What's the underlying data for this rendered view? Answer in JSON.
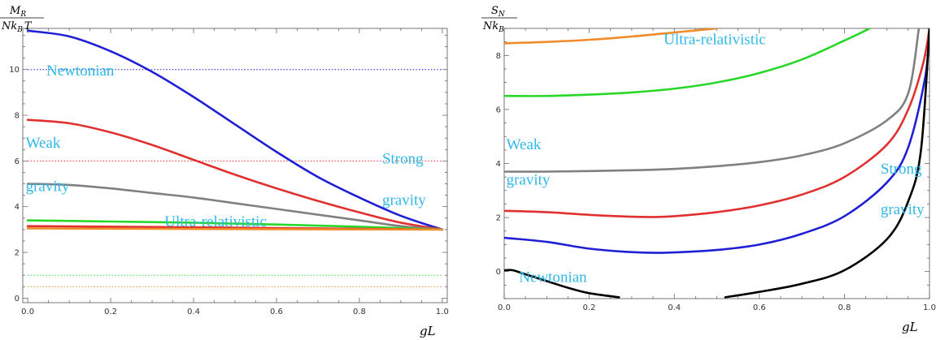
{
  "chart_data": [
    {
      "type": "line",
      "ylabel": {
        "num": "M",
        "num_sub": "R",
        "den": "Nk",
        "den_sub": "B",
        "den_tail": "T"
      },
      "xlabel": "gL",
      "xlim": [
        -0.012,
        1.012
      ],
      "ylim": [
        -0.2,
        11.8
      ],
      "xticks": [
        0.0,
        0.2,
        0.4,
        0.6,
        0.8,
        1.0
      ],
      "xtick_labels": [
        "0.0",
        "0.2",
        "0.4",
        "0.6",
        "0.8",
        "1.0"
      ],
      "yticks": [
        0,
        2,
        4,
        6,
        8,
        10
      ],
      "ytick_labels": [
        "0",
        "2",
        "4",
        "6",
        "8",
        "10"
      ],
      "series": [
        {
          "color": "#1f1fd6",
          "style": "dotted",
          "x": [
            0,
            1
          ],
          "y": [
            10,
            10
          ]
        },
        {
          "color": "#e03030",
          "style": "dotted",
          "x": [
            0,
            1
          ],
          "y": [
            6,
            6
          ]
        },
        {
          "color": "#3ae03a",
          "style": "dotted",
          "x": [
            0,
            1
          ],
          "y": [
            1,
            1
          ]
        },
        {
          "color": "#f08a2a",
          "style": "dotted",
          "x": [
            0,
            1
          ],
          "y": [
            0.5,
            0.5
          ]
        },
        {
          "color": "#1f1fd6",
          "style": "solid",
          "x": [
            0,
            0.1,
            0.2,
            0.3,
            0.4,
            0.5,
            0.6,
            0.7,
            0.8,
            0.9,
            1.0
          ],
          "y": [
            11.7,
            11.45,
            10.8,
            9.9,
            8.8,
            7.6,
            6.4,
            5.3,
            4.4,
            3.6,
            3.0
          ]
        },
        {
          "color": "#e03030",
          "style": "solid",
          "x": [
            0,
            0.1,
            0.2,
            0.3,
            0.4,
            0.5,
            0.6,
            0.7,
            0.8,
            0.9,
            1.0
          ],
          "y": [
            7.8,
            7.65,
            7.25,
            6.7,
            6.05,
            5.4,
            4.8,
            4.25,
            3.75,
            3.3,
            3.0
          ]
        },
        {
          "color": "#808080",
          "style": "solid",
          "x": [
            0,
            0.1,
            0.2,
            0.3,
            0.4,
            0.5,
            0.6,
            0.7,
            0.8,
            0.9,
            1.0
          ],
          "y": [
            5.0,
            4.95,
            4.8,
            4.6,
            4.4,
            4.15,
            3.9,
            3.65,
            3.4,
            3.15,
            3.0
          ]
        },
        {
          "color": "#28d828",
          "style": "solid",
          "x": [
            0,
            0.2,
            0.4,
            0.6,
            0.8,
            1.0
          ],
          "y": [
            3.4,
            3.35,
            3.3,
            3.22,
            3.12,
            3.0
          ]
        },
        {
          "color": "#e03030",
          "style": "solid",
          "x": [
            0,
            0.5,
            1.0
          ],
          "y": [
            3.15,
            3.08,
            3.0
          ]
        },
        {
          "color": "#f08a2a",
          "style": "solid",
          "x": [
            0,
            0.5,
            1.0
          ],
          "y": [
            3.05,
            3.02,
            3.0
          ]
        }
      ],
      "annotations": [
        {
          "text": "Newtonian",
          "x": 0.045,
          "y": 9.95
        },
        {
          "text": "Weak",
          "x": -0.005,
          "y": 6.8
        },
        {
          "text": "gravity",
          "x": -0.005,
          "y": 4.9
        },
        {
          "text": "Ultra-relativistic",
          "x": 0.33,
          "y": 3.35
        },
        {
          "text": "Strong",
          "x": 0.855,
          "y": 6.1
        },
        {
          "text": "gravity",
          "x": 0.855,
          "y": 4.3
        }
      ]
    },
    {
      "type": "line",
      "ylabel": {
        "num": "S",
        "num_sub": "N",
        "den": "Nk",
        "den_sub": "B",
        "den_tail": ""
      },
      "xlabel": "gL",
      "xlim": [
        0,
        1.0
      ],
      "ylim": [
        -1.0,
        9.0
      ],
      "xticks": [
        0.0,
        0.2,
        0.4,
        0.6,
        0.8,
        1.0
      ],
      "xtick_labels": [
        "0.0",
        "0.2",
        "0.4",
        "0.6",
        "0.8",
        "1.0"
      ],
      "yticks": [
        0,
        2,
        4,
        6,
        8
      ],
      "ytick_labels": [
        "0",
        "2",
        "4",
        "6",
        "8"
      ],
      "series": [
        {
          "color": "#f08a2a",
          "style": "solid",
          "x": [
            0,
            0.1,
            0.2,
            0.3,
            0.4,
            0.5
          ],
          "y": [
            8.45,
            8.5,
            8.58,
            8.7,
            8.85,
            9.0
          ]
        },
        {
          "color": "#28d828",
          "style": "solid",
          "x": [
            0,
            0.1,
            0.2,
            0.3,
            0.4,
            0.5,
            0.6,
            0.7,
            0.8,
            0.86
          ],
          "y": [
            6.5,
            6.5,
            6.55,
            6.63,
            6.77,
            7.0,
            7.35,
            7.85,
            8.55,
            9.0
          ]
        },
        {
          "color": "#808080",
          "style": "solid",
          "x": [
            0,
            0.1,
            0.2,
            0.3,
            0.4,
            0.5,
            0.6,
            0.7,
            0.8,
            0.9,
            0.95,
            0.975
          ],
          "y": [
            3.7,
            3.7,
            3.72,
            3.75,
            3.8,
            3.9,
            4.05,
            4.3,
            4.75,
            5.6,
            6.6,
            9.0
          ]
        },
        {
          "color": "#e03030",
          "style": "solid",
          "x": [
            0,
            0.1,
            0.2,
            0.3,
            0.35,
            0.4,
            0.5,
            0.6,
            0.7,
            0.8,
            0.9,
            0.95,
            0.985,
            1.0
          ],
          "y": [
            2.25,
            2.2,
            2.1,
            2.03,
            2.02,
            2.05,
            2.2,
            2.45,
            2.85,
            3.5,
            4.7,
            6.0,
            7.7,
            9.0
          ]
        },
        {
          "color": "#1f1fd6",
          "style": "solid",
          "x": [
            0,
            0.1,
            0.2,
            0.3,
            0.38,
            0.5,
            0.6,
            0.7,
            0.8,
            0.9,
            0.95,
            0.99,
            1.0
          ],
          "y": [
            1.25,
            1.1,
            0.85,
            0.72,
            0.7,
            0.8,
            1.0,
            1.4,
            2.05,
            3.3,
            4.6,
            7.2,
            9.0
          ]
        },
        {
          "color": "#000000",
          "style": "solid",
          "x": [
            0,
            0.02,
            0.05,
            0.1,
            0.15,
            0.2,
            0.27
          ],
          "y": [
            0.05,
            0.05,
            -0.1,
            -0.35,
            -0.6,
            -0.8,
            -0.95
          ]
        },
        {
          "color": "#000000",
          "style": "solid",
          "x": [
            0.52,
            0.6,
            0.7,
            0.8,
            0.9,
            0.95,
            0.98,
            1.0
          ],
          "y": [
            -0.95,
            -0.75,
            -0.45,
            0.05,
            1.2,
            2.6,
            4.5,
            9.0
          ]
        }
      ],
      "annotations": [
        {
          "text": "Ultra-relativistic",
          "x": 0.375,
          "y": 8.6
        },
        {
          "text": "Weak",
          "x": 0.005,
          "y": 4.7
        },
        {
          "text": "gravity",
          "x": 0.005,
          "y": 3.4
        },
        {
          "text": "Strong",
          "x": 0.885,
          "y": 3.8
        },
        {
          "text": "gravity",
          "x": 0.885,
          "y": 2.3
        },
        {
          "text": "Newtonian",
          "x": 0.035,
          "y": -0.2
        }
      ]
    }
  ]
}
